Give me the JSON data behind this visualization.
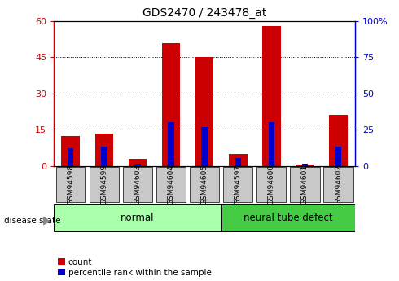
{
  "title": "GDS2470 / 243478_at",
  "samples": [
    "GSM94598",
    "GSM94599",
    "GSM94603",
    "GSM94604",
    "GSM94605",
    "GSM94597",
    "GSM94600",
    "GSM94601",
    "GSM94602"
  ],
  "count_values": [
    12.5,
    13.5,
    3.0,
    51.0,
    45.0,
    5.0,
    58.0,
    0.5,
    21.0
  ],
  "percentile_values": [
    12.0,
    13.0,
    1.5,
    30.0,
    27.0,
    5.5,
    30.0,
    1.5,
    13.0
  ],
  "groups": [
    {
      "label": "normal",
      "start": 0,
      "end": 5,
      "color": "#aaffaa"
    },
    {
      "label": "neural tube defect",
      "start": 5,
      "end": 9,
      "color": "#44cc44"
    }
  ],
  "ylim_left": [
    0,
    60
  ],
  "ylim_right": [
    0,
    100
  ],
  "yticks_left": [
    0,
    15,
    30,
    45,
    60
  ],
  "ytick_labels_left": [
    "0",
    "15",
    "30",
    "45",
    "60"
  ],
  "yticks_right": [
    0,
    25,
    50,
    75,
    100
  ],
  "ytick_labels_right": [
    "0",
    "25",
    "50",
    "75",
    "100%"
  ],
  "count_bar_width": 0.55,
  "percentile_bar_width": 0.18,
  "count_color": "#CC0000",
  "percentile_color": "#0000CC",
  "background_color": "#ffffff",
  "disease_state_label": "disease state",
  "legend_count": "count",
  "legend_percentile": "percentile rank within the sample",
  "title_fontsize": 10,
  "tick_fontsize": 8,
  "sample_fontsize": 6.5
}
